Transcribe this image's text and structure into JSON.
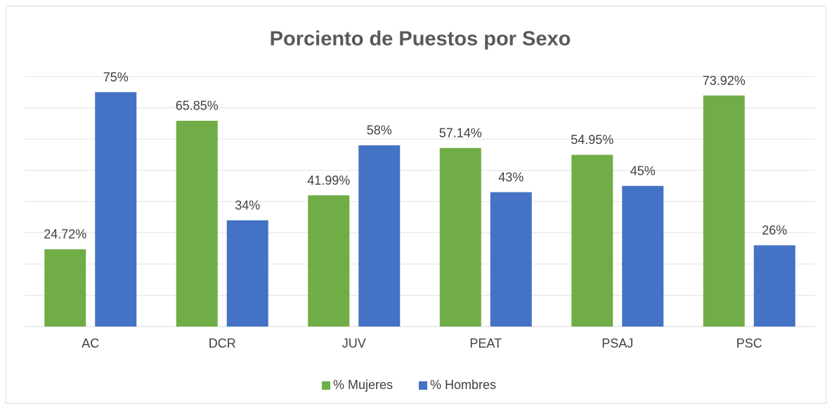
{
  "chart_data": {
    "type": "bar",
    "title": "Porciento de Puestos por Sexo",
    "categories": [
      "AC",
      "DCR",
      "JUV",
      "PEAT",
      "PSAJ",
      "PSC"
    ],
    "series": [
      {
        "name": "% Mujeres",
        "color": "#70ad47",
        "values": [
          24.72,
          65.85,
          41.99,
          57.14,
          54.95,
          73.92
        ],
        "value_labels": [
          "24.72%",
          "65.85%",
          "41.99%",
          "57.14%",
          "54.95%",
          "73.92%"
        ]
      },
      {
        "name": "% Hombres",
        "color": "#4472c4",
        "values": [
          75,
          34,
          58,
          43,
          45,
          26
        ],
        "value_labels": [
          "75%",
          "34%",
          "58%",
          "43%",
          "45%",
          "26%"
        ]
      }
    ],
    "ylim": [
      0,
      80
    ],
    "yticks": [
      0,
      10,
      20,
      30,
      40,
      50,
      60,
      70,
      80
    ],
    "show_ytick_labels": false,
    "grid": true,
    "legend": "bottom"
  }
}
